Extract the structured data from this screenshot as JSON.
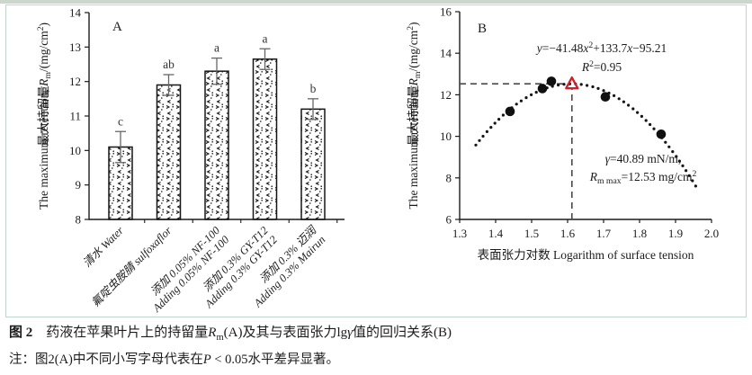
{
  "page": {
    "colors": {
      "ink": "#1c1c1c",
      "error_bar_gray": "#666666",
      "dash_gray": "#4a4a4a",
      "vertex_red": "#c9242b",
      "frame_border": "#c2d5c9",
      "top_strip": "#ccd6cd",
      "background": "#ffffff"
    }
  },
  "caption": {
    "line1": [
      {
        "t": "图 2　",
        "s": "b"
      },
      {
        "t": "药液在苹果叶片上的持留量"
      },
      {
        "t": "R",
        "s": "i"
      },
      {
        "t": "m",
        "s": "sub"
      },
      {
        "t": "(A)及其与表面张力lg"
      },
      {
        "t": "γ",
        "s": "i"
      },
      {
        "t": "值的回归关系(B)"
      }
    ],
    "line2": [
      {
        "t": "注：图2(A)中不同小写字母代表在"
      },
      {
        "t": "P",
        "s": "i"
      },
      {
        "t": " < 0.05水平差异显著。"
      }
    ]
  },
  "chart_data": [
    {
      "id": "A",
      "type": "bar",
      "panel_label": "A",
      "ylabel_cn": "最大持留量",
      "ylabel_en_segments": [
        {
          "t": "The maximum retention, "
        },
        {
          "t": "R",
          "s": "i"
        },
        {
          "t": "m",
          "s": "sub"
        },
        {
          "t": "/(mg/cm"
        },
        {
          "t": "2",
          "s": "sup"
        },
        {
          "t": ")"
        }
      ],
      "ylim": [
        8,
        14
      ],
      "ytick_step": 1,
      "grid": false,
      "categories": [
        {
          "lines": [
            "清水 Water"
          ]
        },
        {
          "lines": [
            "氟啶虫胺腈 sulfoxaflor"
          ]
        },
        {
          "lines": [
            "添加 0.05% NF-100",
            "Adding 0.05% NF-100"
          ]
        },
        {
          "lines": [
            "添加 0.3% GY-T12",
            "Adding 0.3% GY-T12"
          ]
        },
        {
          "lines": [
            "添加 0.3% 迈润",
            "Adding 0.3% Mairun"
          ]
        }
      ],
      "values": [
        10.1,
        11.9,
        12.3,
        12.65,
        11.2
      ],
      "errors": [
        0.45,
        0.3,
        0.38,
        0.3,
        0.3
      ],
      "sig_letters": [
        "c",
        "ab",
        "a",
        "a",
        "b"
      ]
    },
    {
      "id": "B",
      "type": "scatter",
      "panel_label": "B",
      "xlabel": "表面张力对数 Logarithm of surface tension",
      "ylabel_cn": "最大持留量",
      "ylabel_en_segments": [
        {
          "t": "The maximum retention, "
        },
        {
          "t": "R",
          "s": "i"
        },
        {
          "t": "m",
          "s": "sub"
        },
        {
          "t": "/(mg/cm"
        },
        {
          "t": "2",
          "s": "sup"
        },
        {
          "t": ")"
        }
      ],
      "xlim": [
        1.3,
        2.0
      ],
      "xtick_step": 0.1,
      "xtick_decimals": 1,
      "ylim": [
        6,
        16
      ],
      "ytick_step": 2,
      "grid": false,
      "points": [
        [
          1.44,
          11.2
        ],
        [
          1.53,
          12.3
        ],
        [
          1.555,
          12.65
        ],
        [
          1.705,
          11.9
        ],
        [
          1.86,
          10.1
        ]
      ],
      "fit_curve": {
        "type": "quadratic",
        "a": -41.48,
        "b": 133.7,
        "c": -95.21,
        "x_start": 1.345,
        "x_end": 1.96,
        "style": "dotted"
      },
      "vertex_marker": {
        "x": 1.612,
        "y": 12.53,
        "shape": "open-triangle",
        "color": "#c9242b"
      },
      "guides": [
        {
          "type": "h",
          "y": 12.53,
          "x1": 1.3,
          "x2": 1.592
        },
        {
          "type": "v",
          "x": 1.612,
          "y1": 6,
          "y2": 12.32
        }
      ],
      "equation_segments": [
        {
          "t": "y",
          "s": "i"
        },
        {
          "t": "=−41.48"
        },
        {
          "t": "x",
          "s": "i"
        },
        {
          "t": "2",
          "s": "sup"
        },
        {
          "t": "+133.7"
        },
        {
          "t": "x",
          "s": "i"
        },
        {
          "t": "−95.21"
        }
      ],
      "r2_segments": [
        {
          "t": "R",
          "s": "i"
        },
        {
          "t": "2",
          "s": "sup"
        },
        {
          "t": "=0.95"
        }
      ],
      "annotation_line1_segments": [
        {
          "t": "γ",
          "s": "i"
        },
        {
          "t": "=40.89 mN/m,"
        }
      ],
      "annotation_line2_segments": [
        {
          "t": "R",
          "s": "i"
        },
        {
          "t": "m max",
          "s": "sub"
        },
        {
          "t": "=12.53 mg/cm"
        },
        {
          "t": "2",
          "s": "sup"
        }
      ]
    }
  ]
}
